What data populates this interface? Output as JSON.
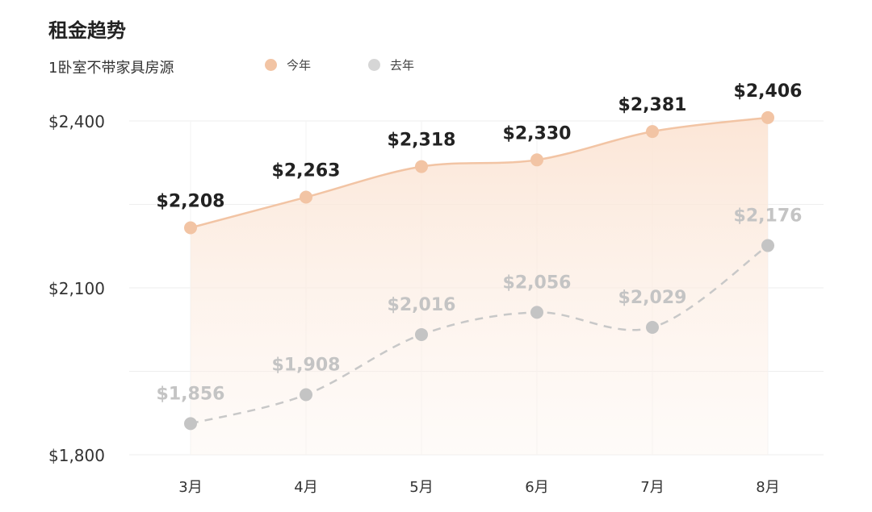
{
  "header": {
    "title": "租金趋势",
    "subtitle": "1卧室不带家具房源"
  },
  "colors": {
    "this_year": "#f2c4a4",
    "last_year": "#cfcfcf",
    "grid": "#eeeeee",
    "this_year_label": "#222222",
    "last_year_label": "#c4c4c4"
  },
  "chart_data": {
    "type": "line",
    "categories": [
      "3月",
      "4月",
      "5月",
      "6月",
      "7月",
      "8月"
    ],
    "series": [
      {
        "name": "今年",
        "values": [
          2208,
          2263,
          2318,
          2330,
          2381,
          2406
        ],
        "labels": [
          "$2,208",
          "$2,263",
          "$2,318",
          "$2,330",
          "$2,381",
          "$2,406"
        ]
      },
      {
        "name": "去年",
        "values": [
          1856,
          1908,
          2016,
          2056,
          2029,
          2176
        ],
        "labels": [
          "$1,856",
          "$1,908",
          "$2,016",
          "$2,056",
          "$2,029",
          "$2,176"
        ]
      }
    ],
    "yticks": [
      1800,
      2100,
      2400
    ],
    "ytick_labels": [
      "$1,800",
      "$2,100",
      "$2,400"
    ],
    "ylim": [
      1800,
      2400
    ],
    "grid": true,
    "legend_position": "top"
  }
}
